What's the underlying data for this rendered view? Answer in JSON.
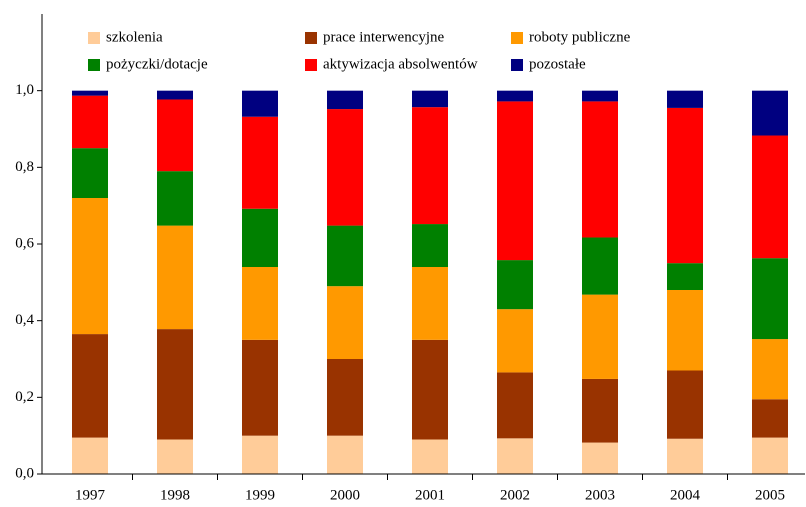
{
  "chart_data": {
    "type": "stacked_bar",
    "categories": [
      "1997",
      "1998",
      "1999",
      "2000",
      "2001",
      "2002",
      "2003",
      "2004",
      "2005"
    ],
    "series": [
      {
        "name": "szkolenia",
        "color": "#FFCC99",
        "values": [
          0.095,
          0.09,
          0.1,
          0.1,
          0.09,
          0.093,
          0.082,
          0.092,
          0.095
        ]
      },
      {
        "name": "prace interwencyjne",
        "color": "#993300",
        "values": [
          0.27,
          0.288,
          0.25,
          0.2,
          0.26,
          0.172,
          0.166,
          0.178,
          0.1
        ]
      },
      {
        "name": "roboty publiczne",
        "color": "#FF9900",
        "values": [
          0.355,
          0.27,
          0.19,
          0.19,
          0.19,
          0.165,
          0.22,
          0.21,
          0.157
        ]
      },
      {
        "name": "pożyczki/dotacje",
        "color": "#008000",
        "values": [
          0.13,
          0.142,
          0.152,
          0.158,
          0.112,
          0.128,
          0.149,
          0.07,
          0.211
        ]
      },
      {
        "name": "aktywizacja absolwentów",
        "color": "#FF0000",
        "values": [
          0.137,
          0.187,
          0.24,
          0.304,
          0.305,
          0.414,
          0.355,
          0.405,
          0.32
        ]
      },
      {
        "name": "pozostałe",
        "color": "#000080",
        "values": [
          0.013,
          0.023,
          0.068,
          0.048,
          0.043,
          0.028,
          0.028,
          0.045,
          0.117
        ]
      }
    ],
    "ylim": [
      0,
      1.2
    ],
    "yticks": [
      {
        "value": 0,
        "label": "0,0"
      },
      {
        "value": 0.2,
        "label": "0,2"
      },
      {
        "value": 0.4,
        "label": "0,4"
      },
      {
        "value": 0.6,
        "label": "0,6"
      },
      {
        "value": 0.8,
        "label": "0,8"
      },
      {
        "value": 1.0,
        "label": "1,0"
      }
    ],
    "legend": "top"
  }
}
